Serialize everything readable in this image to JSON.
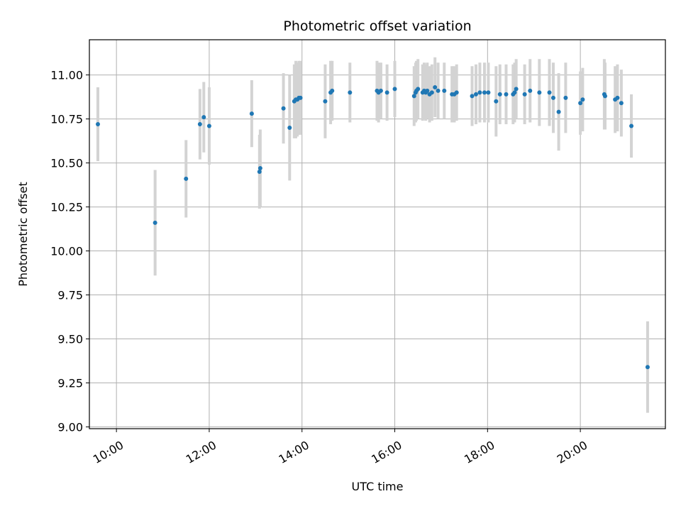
{
  "chart_data": {
    "type": "scatter",
    "title": "Photometric offset variation",
    "xlabel": "UTC time",
    "ylabel": "Photometric offset",
    "x_ticks": [
      "10:00",
      "12:00",
      "14:00",
      "16:00",
      "18:00",
      "20:00"
    ],
    "y_ticks": [
      "9.00",
      "9.25",
      "9.50",
      "9.75",
      "10.00",
      "10.25",
      "10.50",
      "10.75",
      "11.00"
    ],
    "xlim": [
      "09:25",
      "21:50"
    ],
    "ylim": [
      8.99,
      11.2
    ],
    "grid": true,
    "colors": {
      "point": "#1f77b4",
      "errorbar": "#d3d3d3",
      "grid": "#b0b0b0"
    },
    "series": [
      {
        "x": [
          "09:36",
          "10:50",
          "11:30",
          "11:48",
          "11:53",
          "12:00",
          "12:55",
          "13:05",
          "13:06",
          "13:36",
          "13:44",
          "13:50",
          "13:52",
          "13:54",
          "13:56",
          "13:58",
          "14:30",
          "14:37",
          "14:39",
          "15:02",
          "15:37",
          "15:39",
          "15:42",
          "15:50",
          "16:00",
          "16:25",
          "16:27",
          "16:28",
          "16:30",
          "16:36",
          "16:38",
          "16:40",
          "16:42",
          "16:45",
          "16:48",
          "16:52",
          "16:56",
          "17:04",
          "17:14",
          "17:17",
          "17:20",
          "17:40",
          "17:45",
          "17:50",
          "17:56",
          "18:01",
          "18:11",
          "18:16",
          "18:24",
          "18:33",
          "18:35",
          "18:37",
          "18:48",
          "18:55",
          "19:07",
          "19:20",
          "19:25",
          "19:32",
          "19:41",
          "20:00",
          "20:03",
          "20:31",
          "20:32",
          "20:45",
          "20:48",
          "20:53",
          "21:06",
          "21:27"
        ],
        "y": [
          10.72,
          10.16,
          10.41,
          10.72,
          10.76,
          10.71,
          10.78,
          10.45,
          10.47,
          10.81,
          10.7,
          10.85,
          10.86,
          10.86,
          10.87,
          10.87,
          10.85,
          10.9,
          10.91,
          10.9,
          10.91,
          10.9,
          10.91,
          10.9,
          10.92,
          10.88,
          10.9,
          10.91,
          10.92,
          10.9,
          10.91,
          10.9,
          10.91,
          10.89,
          10.9,
          10.93,
          10.91,
          10.91,
          10.89,
          10.89,
          10.9,
          10.88,
          10.89,
          10.9,
          10.9,
          10.9,
          10.85,
          10.89,
          10.89,
          10.89,
          10.9,
          10.92,
          10.89,
          10.91,
          10.9,
          10.9,
          10.87,
          10.79,
          10.87,
          10.84,
          10.86,
          10.89,
          10.88,
          10.86,
          10.87,
          10.84,
          10.71,
          9.34
        ],
        "err": [
          0.21,
          0.3,
          0.22,
          0.2,
          0.2,
          0.22,
          0.19,
          0.21,
          0.22,
          0.2,
          0.3,
          0.21,
          0.22,
          0.21,
          0.21,
          0.21,
          0.21,
          0.18,
          0.17,
          0.17,
          0.17,
          0.17,
          0.16,
          0.16,
          0.16,
          0.17,
          0.17,
          0.17,
          0.17,
          0.16,
          0.16,
          0.16,
          0.16,
          0.16,
          0.16,
          0.17,
          0.16,
          0.16,
          0.16,
          0.16,
          0.16,
          0.17,
          0.17,
          0.17,
          0.17,
          0.17,
          0.2,
          0.17,
          0.17,
          0.17,
          0.17,
          0.17,
          0.17,
          0.18,
          0.19,
          0.19,
          0.2,
          0.22,
          0.2,
          0.18,
          0.18,
          0.2,
          0.19,
          0.19,
          0.19,
          0.19,
          0.18,
          0.26
        ]
      }
    ]
  }
}
